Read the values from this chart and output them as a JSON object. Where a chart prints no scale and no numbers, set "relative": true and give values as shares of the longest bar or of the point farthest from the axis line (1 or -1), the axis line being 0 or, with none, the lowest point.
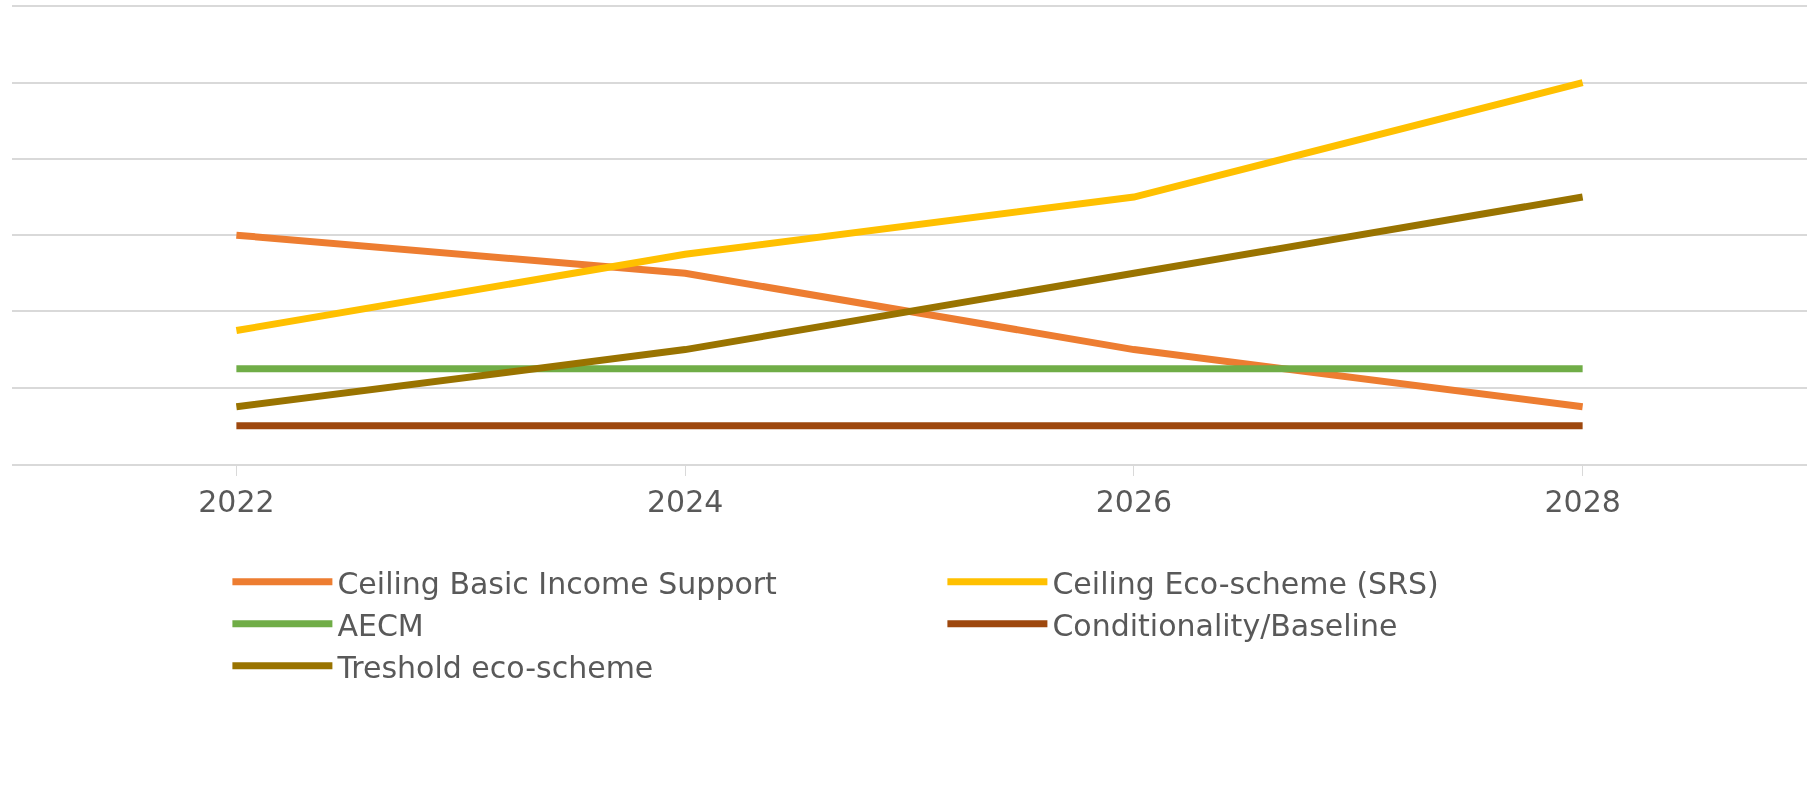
{
  "chart_data": {
    "type": "line",
    "relative": true,
    "grid": "y",
    "legend": "bottom",
    "categories": [
      "2022",
      "2024",
      "2026",
      "2028"
    ],
    "series": [
      {
        "name": "Ceiling Basic Income Support",
        "color": "#ed7d31",
        "values": [
          0.6,
          0.5,
          0.3,
          0.15
        ]
      },
      {
        "name": "Ceiling Eco-scheme (SRS)",
        "color": "#ffc000",
        "values": [
          0.35,
          0.55,
          0.7,
          1
        ]
      },
      {
        "name": "AECM",
        "color": "#70ad47",
        "values": [
          0.25,
          0.25,
          0.25,
          0.25
        ]
      },
      {
        "name": "Conditionality/Baseline",
        "color": "#9e480e",
        "values": [
          0.1,
          0.1,
          0.1,
          0.1
        ]
      },
      {
        "name": "Treshold eco-scheme",
        "color": "#997300",
        "values": [
          0.15,
          0.3,
          0.5,
          0.7
        ]
      }
    ]
  }
}
